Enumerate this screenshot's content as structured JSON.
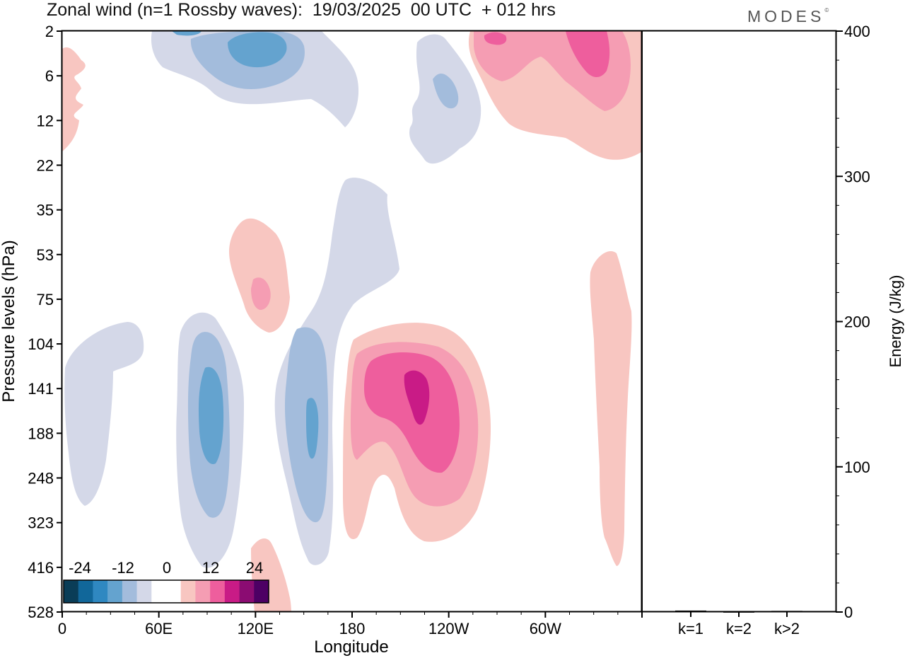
{
  "header": {
    "title": "Zonal wind (n=1 Rossby waves):  19/03/2025  00 UTC  + 012 hrs",
    "brand": "MODES",
    "brand_mark": "©"
  },
  "chart_data": [
    {
      "type": "heatmap",
      "title": "Zonal wind (n=1 Rossby waves):  19/03/2025  00 UTC  + 012 hrs",
      "xlabel": "Longitude",
      "ylabel": "Pressure levels (hPa)",
      "x_ticks": [
        "0",
        "60E",
        "120E",
        "180",
        "120W",
        "60W"
      ],
      "y_ticks": [
        "2",
        "6",
        "12",
        "22",
        "35",
        "53",
        "75",
        "104",
        "141",
        "188",
        "248",
        "323",
        "416",
        "528"
      ],
      "colorbar": {
        "labels": [
          "-24",
          "-12",
          "0",
          "12",
          "24"
        ],
        "colors": [
          "#0a3d57",
          "#11679a",
          "#2f88c1",
          "#64a3cf",
          "#a3bcdc",
          "#d4d8e8",
          "#ffffff",
          "#ffffff",
          "#f8c6c1",
          "#f59db3",
          "#ee5e9d",
          "#c91b86",
          "#8b0c72",
          "#4d0064"
        ]
      },
      "legend": "bottom-left"
    },
    {
      "type": "bar",
      "ylabel": "Energy (J/kg)",
      "categories": [
        "k=1",
        "k=2",
        "k>2"
      ],
      "values": [
        1,
        0.3,
        0.8
      ],
      "ylim": [
        0,
        400
      ],
      "y_ticks": [
        "0",
        "100",
        "200",
        "300",
        "400"
      ]
    }
  ]
}
